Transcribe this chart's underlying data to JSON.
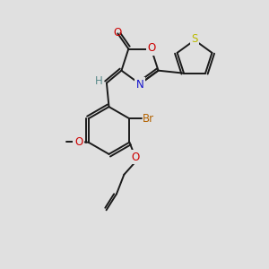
{
  "bg_color": "#e0e0e0",
  "bond_color": "#1a1a1a",
  "bond_width": 1.4,
  "atom_colors": {
    "O": "#cc0000",
    "N": "#1111cc",
    "S": "#bbbb00",
    "Br": "#b36200",
    "H": "#5a8a8a",
    "C": "#1a1a1a"
  },
  "font_size": 8.5,
  "fig_size": [
    3.0,
    3.0
  ],
  "dpi": 100
}
